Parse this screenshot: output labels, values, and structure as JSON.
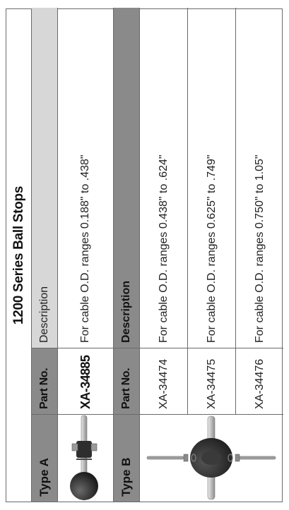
{
  "title": "1200 Series Ball Stops",
  "type_a": {
    "label": "Type A",
    "part_no_header": "Part No.",
    "description_header": "Description",
    "rows": [
      {
        "part_no": "XA-34885",
        "description": "For cable O.D. ranges 0.188\" to .438\""
      }
    ]
  },
  "type_b": {
    "label": "Type B",
    "part_no_header": "Part No.",
    "description_header": "Description",
    "rows": [
      {
        "part_no": "XA-34474",
        "description": "For cable O.D. ranges 0.438\" to .624\""
      },
      {
        "part_no": "XA-34475",
        "description": "For cable O.D. ranges 0.625\" to .749\""
      },
      {
        "part_no": "XA-34476",
        "description": "For cable O.D. ranges 0.750\" to 1.05\""
      }
    ]
  },
  "colors": {
    "header_dark": "#8a8a8a",
    "header_light": "#d7d7d7",
    "border": "#6a6a6a",
    "ball": "#2b2b2b"
  }
}
